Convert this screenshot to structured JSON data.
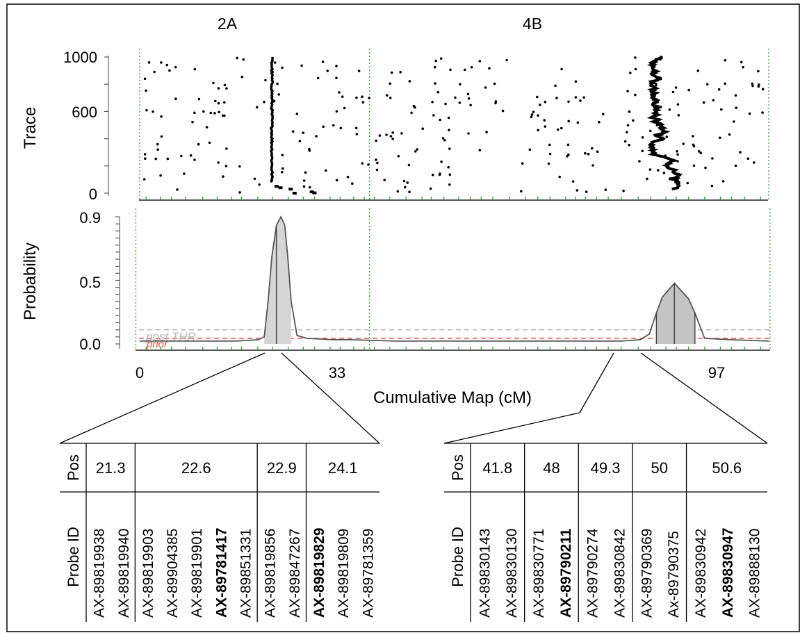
{
  "chart_data": {
    "type": "line",
    "chromosome_labels": [
      "2A",
      "4B"
    ],
    "xlabel": "Cumulative Map (cM)",
    "x_tick_labels": [
      "0",
      "33",
      "97"
    ],
    "xlim": [
      0,
      98
    ],
    "trace": {
      "ylabel": "Trace",
      "y_tick_labels": [
        "0",
        "600",
        "1000"
      ],
      "ylim": [
        0,
        1000
      ]
    },
    "probability": {
      "ylabel": "Probability",
      "y_tick_labels": [
        "0.0",
        "0.5",
        "0.9"
      ],
      "ylim": [
        0,
        0.9
      ],
      "threshold_labels": [
        "post THR",
        "prior"
      ],
      "thresholds": {
        "post_THR": 0.1,
        "prior": 0.04
      },
      "series": [
        {
          "x": [
            0,
            5,
            10,
            15,
            18.5,
            19.4,
            20.0,
            20.6,
            21.3,
            22.0,
            22.6,
            23.1,
            23.6,
            24.5,
            26,
            30,
            33,
            40,
            50,
            60,
            70,
            75,
            78,
            79.4,
            80.5,
            81.4,
            83.3,
            85.5,
            86.5,
            88,
            92,
            98
          ],
          "values": [
            0.02,
            0.02,
            0.02,
            0.02,
            0.03,
            0.05,
            0.3,
            0.62,
            0.84,
            0.9,
            0.84,
            0.6,
            0.3,
            0.06,
            0.04,
            0.03,
            0.03,
            0.02,
            0.02,
            0.02,
            0.02,
            0.02,
            0.03,
            0.07,
            0.22,
            0.33,
            0.43,
            0.32,
            0.22,
            0.04,
            0.03,
            0.02
          ]
        }
      ]
    },
    "tables": [
      {
        "pos_label": "Pos",
        "probe_label": "Probe ID",
        "groups": [
          {
            "pos": "21.3",
            "probes": [
              {
                "id": "AX-89819938",
                "bold": false
              },
              {
                "id": "AX-89819940",
                "bold": false
              }
            ]
          },
          {
            "pos": "22.6",
            "probes": [
              {
                "id": "AX-89819903",
                "bold": false
              },
              {
                "id": "AX-89904385",
                "bold": false
              },
              {
                "id": "AX-89819901",
                "bold": false
              },
              {
                "id": "AX-89781417",
                "bold": true
              },
              {
                "id": "AX-89851331",
                "bold": false
              }
            ]
          },
          {
            "pos": "22.9",
            "probes": [
              {
                "id": "AX-89819856",
                "bold": false
              },
              {
                "id": "AX-89847267",
                "bold": false
              }
            ]
          },
          {
            "pos": "24.1",
            "probes": [
              {
                "id": "AX-89819829",
                "bold": true
              },
              {
                "id": "AX-89819809",
                "bold": false
              },
              {
                "id": "AX-89781359",
                "bold": false
              }
            ]
          }
        ]
      },
      {
        "pos_label": "Pos",
        "probe_label": "Probe ID",
        "groups": [
          {
            "pos": "41.8",
            "probes": [
              {
                "id": "AX-89830143",
                "bold": false
              },
              {
                "id": "AX-89830130",
                "bold": false
              }
            ]
          },
          {
            "pos": "48",
            "probes": [
              {
                "id": "AX-89830771",
                "bold": false
              },
              {
                "id": "AX-89790211",
                "bold": true
              }
            ]
          },
          {
            "pos": "49.3",
            "probes": [
              {
                "id": "AX-89790274",
                "bold": false
              },
              {
                "id": "AX-89830842",
                "bold": false
              }
            ]
          },
          {
            "pos": "50",
            "probes": [
              {
                "id": "AX-89790369",
                "bold": false
              },
              {
                "id": "Ax-89790375",
                "bold": false
              }
            ]
          },
          {
            "pos": "50.6",
            "probes": [
              {
                "id": "AX-89830942",
                "bold": false
              },
              {
                "id": "AX-89830947",
                "bold": true
              },
              {
                "id": "AX-89888130",
                "bold": false
              }
            ]
          }
        ]
      }
    ],
    "colors": {
      "grid_dotted": "#22aa22",
      "post_thr": "#b0b0b0",
      "prior": "#e8503a",
      "peak_fill": "#c4c4c4",
      "trace_points": "#000000"
    }
  }
}
